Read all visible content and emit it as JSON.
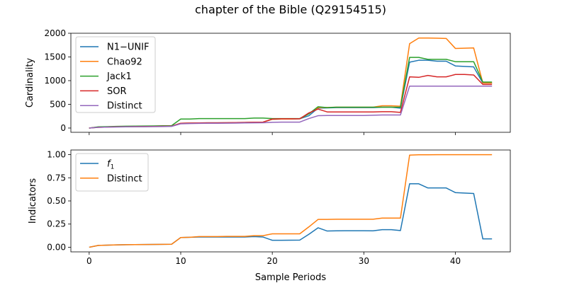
{
  "figure_title": "chapter of the Bible (Q29154515)",
  "chart_data": [
    {
      "type": "line",
      "title": "",
      "xlabel": "",
      "ylabel": "Cardinality",
      "xlim": [
        -2,
        46
      ],
      "ylim": [
        -90,
        2000
      ],
      "xticks": [
        0,
        10,
        20,
        30,
        40
      ],
      "yticks": [
        0,
        500,
        1000,
        1500,
        2000
      ],
      "show_xtick_labels": false,
      "grid": false,
      "legend_position": "upper-left",
      "x": [
        0,
        1,
        2,
        3,
        4,
        5,
        6,
        7,
        8,
        9,
        10,
        11,
        12,
        13,
        14,
        15,
        16,
        17,
        18,
        19,
        20,
        21,
        22,
        23,
        24,
        25,
        26,
        27,
        28,
        29,
        30,
        31,
        32,
        33,
        34,
        35,
        36,
        37,
        38,
        39,
        40,
        41,
        42,
        43,
        44
      ],
      "series": [
        {
          "name": "N1−UNIF",
          "color": "#1f77b4",
          "values": [
            0,
            20,
            25,
            28,
            32,
            35,
            37,
            38,
            40,
            42,
            100,
            105,
            108,
            110,
            110,
            112,
            115,
            118,
            122,
            125,
            185,
            190,
            190,
            195,
            260,
            420,
            425,
            430,
            430,
            430,
            430,
            430,
            440,
            440,
            420,
            1390,
            1430,
            1430,
            1410,
            1410,
            1310,
            1300,
            1290,
            950,
            950
          ]
        },
        {
          "name": "Chao92",
          "color": "#ff7f0e",
          "values": [
            0,
            20,
            25,
            28,
            32,
            35,
            37,
            38,
            40,
            42,
            100,
            105,
            108,
            110,
            110,
            112,
            115,
            118,
            122,
            125,
            185,
            190,
            190,
            195,
            300,
            430,
            435,
            440,
            440,
            440,
            440,
            440,
            470,
            470,
            460,
            1780,
            1900,
            1900,
            1895,
            1890,
            1680,
            1685,
            1690,
            950,
            950
          ]
        },
        {
          "name": "Jack1",
          "color": "#2ca02c",
          "values": [
            0,
            25,
            30,
            35,
            38,
            40,
            42,
            45,
            48,
            50,
            190,
            190,
            200,
            200,
            200,
            200,
            200,
            200,
            210,
            210,
            200,
            200,
            200,
            200,
            300,
            450,
            430,
            440,
            440,
            440,
            440,
            440,
            440,
            440,
            440,
            1490,
            1490,
            1450,
            1450,
            1450,
            1400,
            1400,
            1400,
            970,
            970
          ]
        },
        {
          "name": "SOR",
          "color": "#d62728",
          "values": [
            0,
            15,
            20,
            25,
            28,
            30,
            32,
            34,
            36,
            38,
            100,
            105,
            108,
            110,
            110,
            112,
            115,
            118,
            122,
            125,
            190,
            195,
            195,
            195,
            320,
            400,
            340,
            340,
            340,
            340,
            340,
            340,
            345,
            345,
            330,
            1080,
            1070,
            1110,
            1080,
            1080,
            1130,
            1130,
            1120,
            920,
            920
          ]
        },
        {
          "name": "Distinct",
          "color": "#9467bd",
          "values": [
            0,
            15,
            20,
            22,
            25,
            27,
            28,
            30,
            32,
            35,
            90,
            95,
            98,
            100,
            100,
            102,
            105,
            108,
            110,
            112,
            120,
            125,
            125,
            125,
            200,
            260,
            265,
            265,
            265,
            265,
            265,
            270,
            275,
            275,
            275,
            885,
            885,
            885,
            885,
            885,
            885,
            885,
            885,
            885,
            885
          ]
        }
      ]
    },
    {
      "type": "line",
      "title": "",
      "xlabel": "Sample Periods",
      "ylabel": "Indicators",
      "xlim": [
        -2,
        46
      ],
      "ylim": [
        -0.05,
        1.05
      ],
      "xticks": [
        0,
        10,
        20,
        30,
        40
      ],
      "yticks": [
        0.0,
        0.25,
        0.5,
        0.75,
        1.0
      ],
      "ytick_labels": [
        "0.00",
        "0.25",
        "0.50",
        "0.75",
        "1.00"
      ],
      "show_xtick_labels": true,
      "grid": false,
      "legend_position": "upper-left",
      "x": [
        0,
        1,
        2,
        3,
        4,
        5,
        6,
        7,
        8,
        9,
        10,
        11,
        12,
        13,
        14,
        15,
        16,
        17,
        18,
        19,
        20,
        21,
        22,
        23,
        24,
        25,
        26,
        27,
        28,
        29,
        30,
        31,
        32,
        33,
        34,
        35,
        36,
        37,
        38,
        39,
        40,
        41,
        42,
        43,
        44
      ],
      "series": [
        {
          "name": "f1",
          "color": "#1f77b4",
          "values": [
            0,
            0.02,
            0.023,
            0.025,
            0.027,
            0.028,
            0.029,
            0.03,
            0.031,
            0.032,
            0.105,
            0.108,
            0.11,
            0.11,
            0.11,
            0.11,
            0.11,
            0.11,
            0.115,
            0.11,
            0.075,
            0.075,
            0.076,
            0.077,
            0.14,
            0.21,
            0.175,
            0.177,
            0.178,
            0.178,
            0.178,
            0.177,
            0.19,
            0.19,
            0.18,
            0.685,
            0.685,
            0.64,
            0.64,
            0.64,
            0.59,
            0.585,
            0.58,
            0.09,
            0.09
          ]
        },
        {
          "name": "Distinct",
          "color": "#ff7f0e",
          "values": [
            0,
            0.02,
            0.023,
            0.025,
            0.027,
            0.028,
            0.029,
            0.03,
            0.031,
            0.032,
            0.105,
            0.108,
            0.115,
            0.115,
            0.115,
            0.117,
            0.117,
            0.117,
            0.125,
            0.125,
            0.145,
            0.145,
            0.145,
            0.145,
            0.22,
            0.3,
            0.3,
            0.302,
            0.302,
            0.302,
            0.302,
            0.302,
            0.315,
            0.315,
            0.315,
            0.995,
            0.998,
            0.998,
            0.999,
            0.999,
            0.999,
            0.999,
            0.999,
            0.999,
            0.999
          ]
        }
      ]
    }
  ]
}
